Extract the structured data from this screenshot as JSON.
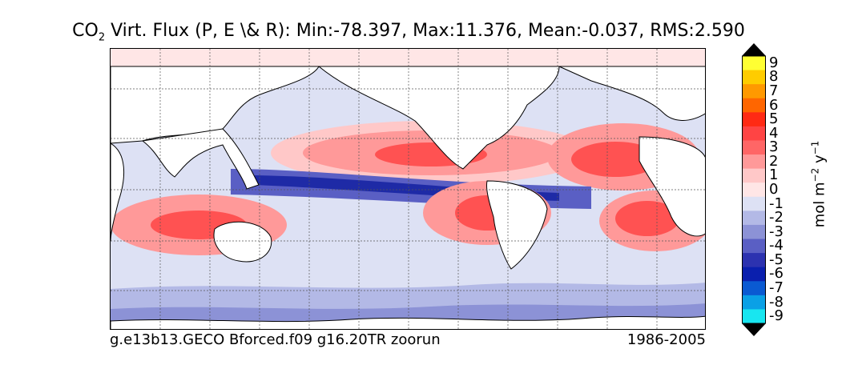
{
  "title": {
    "prefix": "CO",
    "subscript": "2",
    "text": "Virt. Flux (P, E \\& R): Min:-78.397, Max:11.376, Mean:-0.037, RMS:2.590"
  },
  "footer": {
    "left": "g.e13b13.GECO Bforced.f09 g16.20TR zoorun",
    "right": "1986-2005"
  },
  "colorbar": {
    "unit_base": "mol m",
    "unit_exp1": "−2",
    "unit_mid": " y",
    "unit_exp2": "−1",
    "labels": [
      "9",
      "8",
      "7",
      "6",
      "5",
      "4",
      "3",
      "2",
      "1",
      "0",
      "-1",
      "-2",
      "-3",
      "-4",
      "-5",
      "-6",
      "-7",
      "-8",
      "-9"
    ],
    "colors_top_to_bottom": [
      "#ffff33",
      "#ffcc00",
      "#ff9900",
      "#ff6600",
      "#ff2a14",
      "#ff4444",
      "#ff6666",
      "#ff9999",
      "#ffc8c8",
      "#ffe6e6",
      "#dde1f4",
      "#b3b9e6",
      "#8c92d6",
      "#5a5fc4",
      "#2c32b0",
      "#0a1fae",
      "#0a5ad2",
      "#0aa0e6",
      "#18e6f0"
    ],
    "extend_colors": {
      "top": "#000000",
      "bottom": "#000000"
    }
  },
  "map": {
    "land_color": "#ffffff",
    "coastline_color": "#000000",
    "gridlines": "dotted",
    "field_colors": {
      "strong_negative": "#1e2aa6",
      "negative": "#5a5fc4",
      "weak_negative": "#b3b9e6",
      "near_zero": "#dde1f4",
      "weak_positive": "#ffc8c8",
      "positive": "#ff9999",
      "strong_positive": "#ff5252"
    }
  }
}
